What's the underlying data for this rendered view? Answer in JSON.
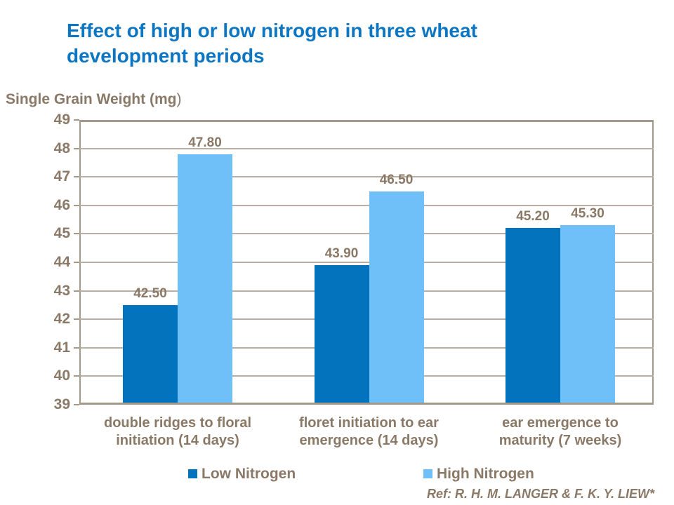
{
  "slide": {
    "title_lines": [
      "Effect of high or low nitrogen in three wheat",
      "development periods"
    ],
    "ref_text": "Ref: R. H. M. LANGER & F. K. Y. LIEW*"
  },
  "colors": {
    "title": "#0D76C3",
    "text_brown": "#8A7966",
    "axis": "#A29989",
    "gridline": "#B9B0A3",
    "low_nitrogen": "#0473BD",
    "high_nitrogen": "#6FBFF9"
  },
  "chart_data": {
    "type": "bar",
    "title": "Effect of high or low nitrogen in three wheat development periods",
    "xlabel": "",
    "ylabel": "Single Grain Weight (mg)",
    "ylabel_display": {
      "bold": "Single Grain Weight (mg",
      "tail": ")"
    },
    "ylim": [
      39,
      49
    ],
    "yticks": [
      49,
      48,
      47,
      46,
      45,
      44,
      43,
      42,
      41,
      40,
      39
    ],
    "grid": true,
    "legend_position": "bottom",
    "categories": [
      "double ridges to floral initiation (14 days)",
      "floret initiation to ear emergence (14 days)",
      "ear emergence to maturity (7 weeks)"
    ],
    "categories_lines": [
      [
        "double ridges to floral",
        "initiation (14 days)"
      ],
      [
        "floret initiation to ear",
        "emergence (14 days)"
      ],
      [
        "ear emergence to",
        "maturity (7 weeks)"
      ]
    ],
    "series": [
      {
        "name": "Low Nitrogen",
        "color": "#0473BD",
        "values": [
          42.5,
          43.9,
          45.2
        ],
        "value_labels": [
          "42.50",
          "43.90",
          "45.20"
        ]
      },
      {
        "name": "High Nitrogen",
        "color": "#6FBFF9",
        "values": [
          47.8,
          46.5,
          45.3
        ],
        "value_labels": [
          "47.80",
          "46.50",
          "45.30"
        ]
      }
    ]
  }
}
